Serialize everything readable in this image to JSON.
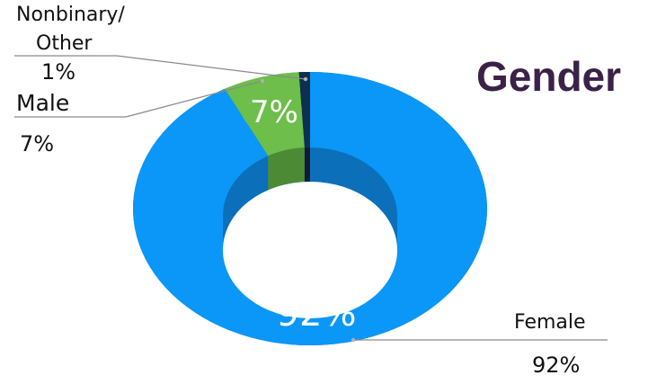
{
  "chart_data": {
    "type": "pie",
    "variant": "donut-3d",
    "title": "Gender",
    "slices": [
      {
        "name": "Female",
        "value": 92,
        "label": "92%",
        "color": "#0a97f7",
        "side_color": "#0b6fb9"
      },
      {
        "name": "Male",
        "value": 7,
        "label": "7%",
        "color": "#6dbe4b",
        "side_color": "#4d8a35"
      },
      {
        "name": "Nonbinary/ Other",
        "value": 1,
        "label": "1%",
        "color": "#0e2f4f",
        "side_color": "#081d33"
      }
    ],
    "callouts": {
      "nonbinary_line1": "Nonbinary/",
      "nonbinary_line2": "Other",
      "nonbinary_value": "1%",
      "male_name": "Male",
      "male_value": "7%",
      "female_name": "Female",
      "female_value": "92%"
    },
    "legend": "none"
  }
}
